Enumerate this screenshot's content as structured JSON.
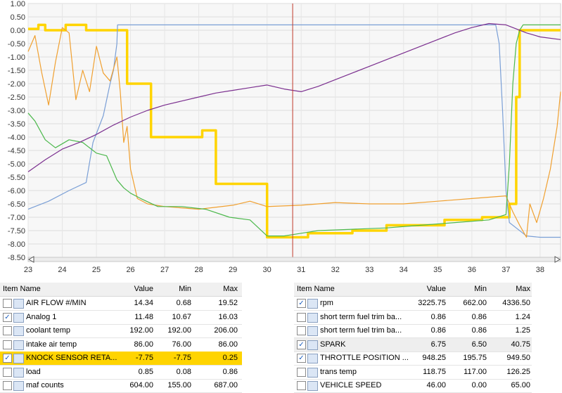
{
  "chart_data": {
    "type": "line",
    "y_ticks": [
      "1.00",
      "0.50",
      "0.00",
      "-0.50",
      "-1.00",
      "-1.50",
      "-2.00",
      "-2.50",
      "-3.00",
      "-3.50",
      "-4.00",
      "-4.50",
      "-5.00",
      "-5.50",
      "-6.00",
      "-6.50",
      "-7.00",
      "-7.50",
      "-8.00",
      "-8.50"
    ],
    "x_ticks": [
      "23",
      "24",
      "25",
      "26",
      "27",
      "28",
      "29",
      "30",
      "31",
      "32",
      "33",
      "34",
      "35",
      "36",
      "37",
      "38"
    ],
    "xlim": [
      23,
      38.6
    ],
    "ylim": [
      -8.5,
      1.0
    ],
    "cursor_x": 30.75,
    "grid": true,
    "series": [
      {
        "color": "#ffd400",
        "x": [
          23,
          23.3,
          23.3,
          23.5,
          23.5,
          24.1,
          24.1,
          24.7,
          24.7,
          25.9,
          25.9,
          26.6,
          26.6,
          28.1,
          28.1,
          28.5,
          28.5,
          30,
          30,
          31.2,
          31.2,
          32.5,
          32.5,
          33.5,
          33.5,
          35.2,
          35.2,
          36.3,
          36.3,
          37.1,
          37.1,
          37.3,
          37.3,
          37.4,
          37.4,
          37.5,
          37.5,
          38.6
        ],
        "y": [
          0.05,
          0.05,
          0.2,
          0.2,
          0,
          0,
          0.2,
          0.2,
          0,
          0,
          -2.0,
          -2.0,
          -4.0,
          -4.0,
          -3.75,
          -3.75,
          -5.75,
          -5.75,
          -7.75,
          -7.75,
          -7.6,
          -7.6,
          -7.5,
          -7.5,
          -7.3,
          -7.3,
          -7.1,
          -7.1,
          -7.0,
          -7.0,
          -6.5,
          -6.5,
          -2.5,
          -2.5,
          0,
          0,
          0,
          0
        ]
      },
      {
        "color": "#7a9fd6",
        "x": [
          23,
          23.6,
          24.2,
          24.7,
          24.9,
          25.2,
          25.4,
          25.5,
          25.6,
          25.62,
          26,
          28,
          30,
          32,
          34,
          36,
          36.7,
          36.8,
          36.9,
          37,
          37.1,
          37.3,
          37.5,
          37.6,
          38,
          38.6
        ],
        "y": [
          -6.7,
          -6.4,
          -6.0,
          -5.7,
          -4.2,
          -3.2,
          -2.0,
          -1.5,
          -0.5,
          0.2,
          0.2,
          0.2,
          0.2,
          0.2,
          0.2,
          0.2,
          0.2,
          -0.5,
          -3.0,
          -6.0,
          -7.2,
          -7.4,
          -7.6,
          -7.7,
          -7.75,
          -7.75
        ]
      },
      {
        "color": "#f0a030",
        "x": [
          23,
          23.2,
          23.4,
          23.6,
          23.8,
          24.0,
          24.2,
          24.4,
          24.6,
          24.8,
          25.0,
          25.2,
          25.4,
          25.6,
          25.7,
          25.8,
          25.9,
          26.0,
          26.2,
          26.5,
          27,
          28,
          29,
          29.5,
          30,
          31,
          32,
          33,
          34,
          35,
          36,
          36.5,
          37,
          37.2,
          37.4,
          37.6,
          37.7,
          37.9,
          38.1,
          38.3,
          38.5,
          38.6
        ],
        "y": [
          -0.8,
          -0.2,
          -1.6,
          -2.8,
          -1.2,
          0.1,
          -0.1,
          -2.6,
          -1.5,
          -2.3,
          -0.6,
          -1.6,
          -1.9,
          -1.0,
          -2.3,
          -4.2,
          -3.6,
          -5.2,
          -6.3,
          -6.5,
          -6.6,
          -6.7,
          -6.55,
          -6.4,
          -6.6,
          -6.55,
          -6.45,
          -6.5,
          -6.5,
          -6.4,
          -6.3,
          -6.25,
          -6.2,
          -6.8,
          -7.3,
          -7.75,
          -6.5,
          -7.2,
          -6.3,
          -5.2,
          -3.6,
          -2.3
        ]
      },
      {
        "color": "#4cb84c",
        "x": [
          23,
          23.2,
          23.5,
          23.8,
          24.2,
          24.6,
          25.0,
          25.3,
          25.6,
          25.8,
          26.0,
          26.3,
          26.8,
          27.5,
          28.2,
          28.9,
          29.5,
          30,
          30.5,
          31,
          31.5,
          32.5,
          33.5,
          34.5,
          35.5,
          36.5,
          37,
          37.1,
          37.2,
          37.3,
          37.4,
          37.5,
          38,
          38.6
        ],
        "y": [
          -3.1,
          -3.4,
          -4.1,
          -4.4,
          -4.1,
          -4.2,
          -4.6,
          -4.7,
          -5.6,
          -5.9,
          -6.1,
          -6.3,
          -6.6,
          -6.6,
          -6.7,
          -7.0,
          -7.1,
          -7.7,
          -7.7,
          -7.6,
          -7.5,
          -7.45,
          -7.4,
          -7.3,
          -7.2,
          -7.1,
          -6.9,
          -5.0,
          -2.0,
          -0.5,
          0.0,
          0.2,
          0.2,
          0.2
        ]
      },
      {
        "color": "#7b2f8f",
        "x": [
          23,
          23.5,
          24,
          24.5,
          25,
          25.5,
          26,
          26.5,
          27,
          27.5,
          28,
          28.5,
          29,
          29.5,
          30,
          30.5,
          31,
          31.5,
          32,
          32.5,
          33,
          33.5,
          34,
          34.5,
          35,
          35.5,
          36,
          36.5,
          37,
          37.3,
          37.6,
          38,
          38.6
        ],
        "y": [
          -5.3,
          -4.85,
          -4.45,
          -4.2,
          -3.9,
          -3.55,
          -3.25,
          -3.0,
          -2.8,
          -2.65,
          -2.5,
          -2.35,
          -2.25,
          -2.15,
          -2.05,
          -2.2,
          -2.3,
          -2.1,
          -1.85,
          -1.6,
          -1.35,
          -1.1,
          -0.85,
          -0.6,
          -0.35,
          -0.1,
          0.1,
          0.25,
          0.2,
          0.05,
          -0.1,
          -0.25,
          -0.35
        ]
      }
    ]
  },
  "left_table": {
    "headers": {
      "item": "Item Name",
      "value": "Value",
      "min": "Min",
      "max": "Max"
    },
    "rows": [
      {
        "checked": false,
        "name": "AIR FLOW #/MIN",
        "value": "14.34",
        "min": "0.68",
        "max": "19.52"
      },
      {
        "checked": true,
        "name": "Analog 1",
        "value": "11.48",
        "min": "10.67",
        "max": "16.03"
      },
      {
        "checked": false,
        "name": "coolant temp",
        "value": "192.00",
        "min": "192.00",
        "max": "206.00"
      },
      {
        "checked": false,
        "name": "intake air temp",
        "value": "86.00",
        "min": "76.00",
        "max": "86.00"
      },
      {
        "checked": true,
        "name": "KNOCK SENSOR RETA...",
        "value": "-7.75",
        "min": "-7.75",
        "max": "0.25",
        "highlight": true
      },
      {
        "checked": false,
        "name": "load",
        "value": "0.85",
        "min": "0.08",
        "max": "0.86"
      },
      {
        "checked": false,
        "name": "maf counts",
        "value": "604.00",
        "min": "155.00",
        "max": "687.00"
      }
    ]
  },
  "right_table": {
    "headers": {
      "item": "Item Name",
      "value": "Value",
      "min": "Min",
      "max": "Max"
    },
    "rows": [
      {
        "checked": true,
        "name": "rpm",
        "value": "3225.75",
        "min": "662.00",
        "max": "4336.50"
      },
      {
        "checked": false,
        "name": "short term fuel trim ba...",
        "value": "0.86",
        "min": "0.86",
        "max": "1.24"
      },
      {
        "checked": false,
        "name": "short term fuel trim ba...",
        "value": "0.86",
        "min": "0.86",
        "max": "1.25"
      },
      {
        "checked": true,
        "name": "SPARK",
        "value": "6.75",
        "min": "6.50",
        "max": "40.75",
        "grey": true
      },
      {
        "checked": true,
        "name": "THROTTLE POSITION ...",
        "value": "948.25",
        "min": "195.75",
        "max": "949.50"
      },
      {
        "checked": false,
        "name": "trans temp",
        "value": "118.75",
        "min": "117.00",
        "max": "126.25"
      },
      {
        "checked": false,
        "name": "VEHICLE SPEED",
        "value": "46.00",
        "min": "0.00",
        "max": "65.00"
      }
    ]
  }
}
